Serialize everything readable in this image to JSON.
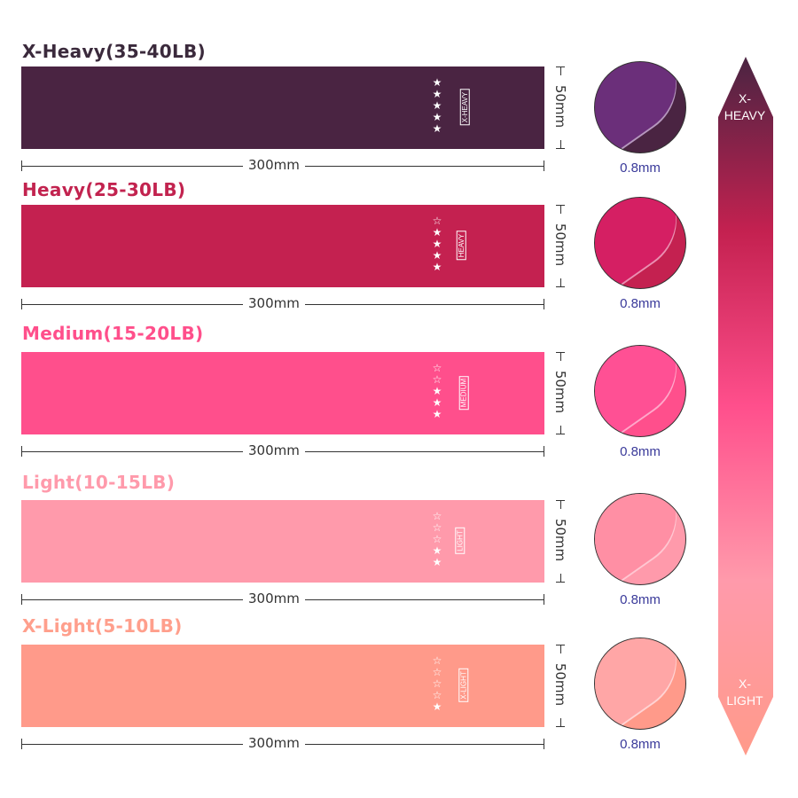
{
  "bands": [
    {
      "title": "X-Heavy(35-40LB)",
      "tag": "X-HEAVY",
      "stars_filled": 5,
      "color": "#4a2442",
      "title_color": "#3b2a3c",
      "inner": "#6b2f7a",
      "width": "300mm",
      "height": "50mm",
      "thickness": "0.8mm"
    },
    {
      "title": "Heavy(25-30LB)",
      "tag": "HEAVY",
      "stars_filled": 4,
      "color": "#c42150",
      "title_color": "#c2234f",
      "inner": "#d51f63",
      "width": "300mm",
      "height": "50mm",
      "thickness": "0.8mm"
    },
    {
      "title": "Medium(15-20LB)",
      "tag": "MEDIUM",
      "stars_filled": 3,
      "color": "#ff4f8c",
      "title_color": "#ff4f8b",
      "inner": "#ff5094",
      "width": "300mm",
      "height": "50mm",
      "thickness": "0.8mm"
    },
    {
      "title": "Light(10-15LB)",
      "tag": "LIGHT",
      "stars_filled": 2,
      "color": "#ff9aab",
      "title_color": "#ff9aab",
      "inner": "#ff8fa4",
      "width": "300mm",
      "height": "50mm",
      "thickness": "0.8mm"
    },
    {
      "title": "X-Light(5-10LB)",
      "tag": "X-LIGHT",
      "stars_filled": 1,
      "color": "#ff9a8a",
      "title_color": "#ff9f8c",
      "inner": "#ffa6a6",
      "width": "300mm",
      "height": "50mm",
      "thickness": "0.8mm"
    }
  ],
  "stars_total": 5,
  "scale": {
    "top_label": "X-\nHEAVY",
    "bottom_label": "X-\nLIGHT",
    "top_color": "#4a2442",
    "bottom_color": "#ff9a8a"
  }
}
